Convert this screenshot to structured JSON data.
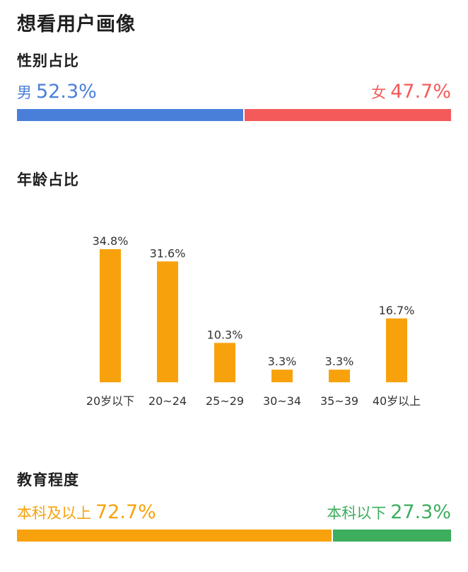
{
  "page": {
    "title": "想看用户画像"
  },
  "gender": {
    "title": "性别占比",
    "male": {
      "label": "男",
      "value": "52.3%",
      "fraction": 0.523,
      "color": "#4a7fd9"
    },
    "female": {
      "label": "女",
      "value": "47.7%",
      "fraction": 0.477,
      "color": "#f45a5a"
    }
  },
  "age": {
    "title": "年龄占比"
  },
  "education": {
    "title": "教育程度",
    "high": {
      "label": "本科及以上",
      "value": "72.7%",
      "fraction": 0.727,
      "color": "#f7a20c"
    },
    "low": {
      "label": "本科以下",
      "value": "27.3%",
      "fraction": 0.273,
      "color": "#3dad5e"
    }
  },
  "chart_data": {
    "type": "bar",
    "title": "",
    "xlabel": "",
    "ylabel": "",
    "categories": [
      "20岁以下",
      "20~24",
      "25~29",
      "30~34",
      "35~39",
      "40岁以上"
    ],
    "values": [
      34.8,
      31.6,
      10.3,
      3.3,
      3.3,
      16.7
    ],
    "data_labels": [
      "34.8%",
      "31.6%",
      "10.3%",
      "3.3%",
      "3.3%",
      "16.7%"
    ],
    "ylim": [
      0,
      34.8
    ],
    "grid": false,
    "color": "#f7a20c"
  }
}
